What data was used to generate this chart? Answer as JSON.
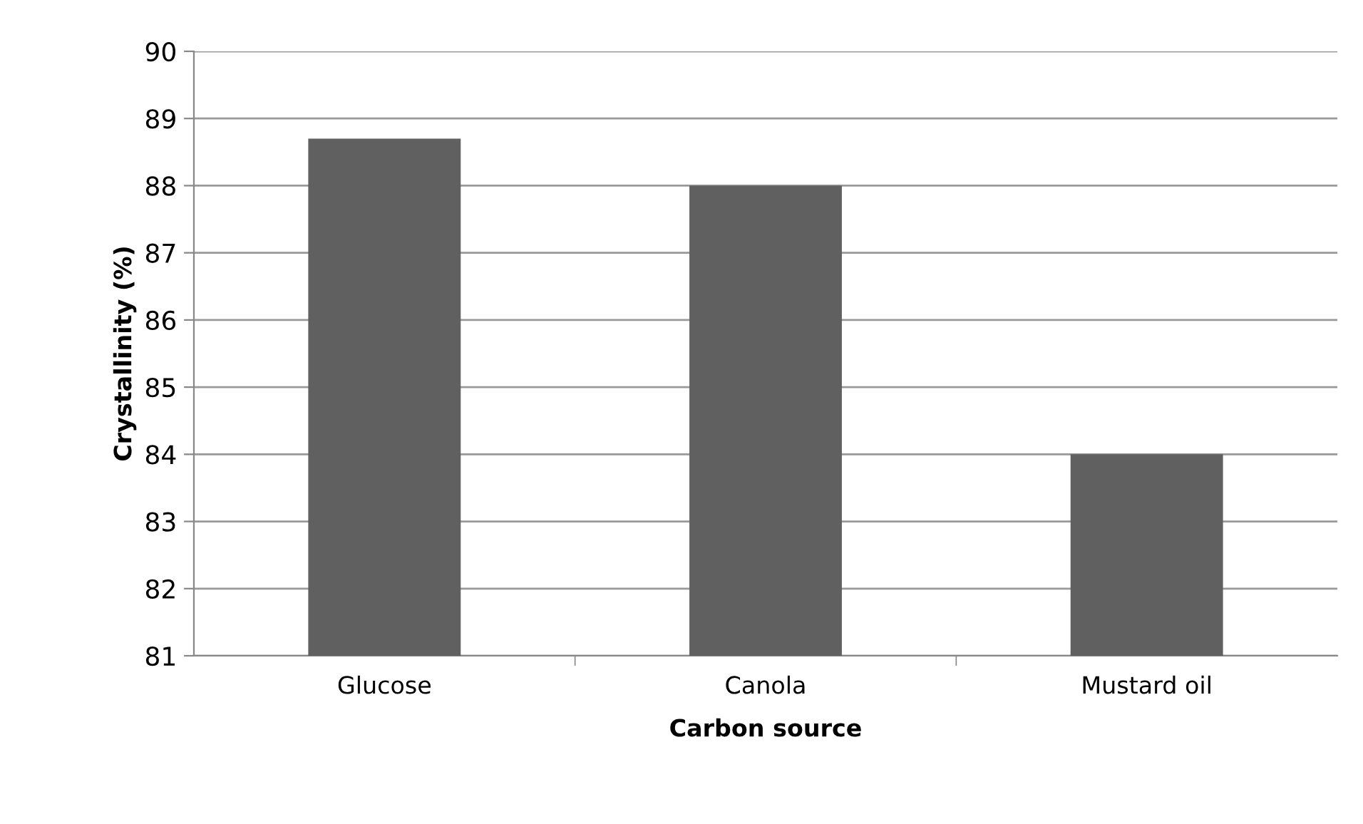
{
  "chart_data": {
    "type": "bar",
    "xlabel": "Carbon source",
    "ylabel": "Crystallinity (%)",
    "categories": [
      "Glucose",
      "Canola",
      "Mustard oil"
    ],
    "values": [
      88.7,
      88.0,
      84.0
    ],
    "color": "#606060",
    "ylim": [
      81,
      90
    ],
    "yticks": [
      81,
      82,
      83,
      84,
      85,
      86,
      87,
      88,
      89,
      90
    ],
    "grid": "y"
  }
}
